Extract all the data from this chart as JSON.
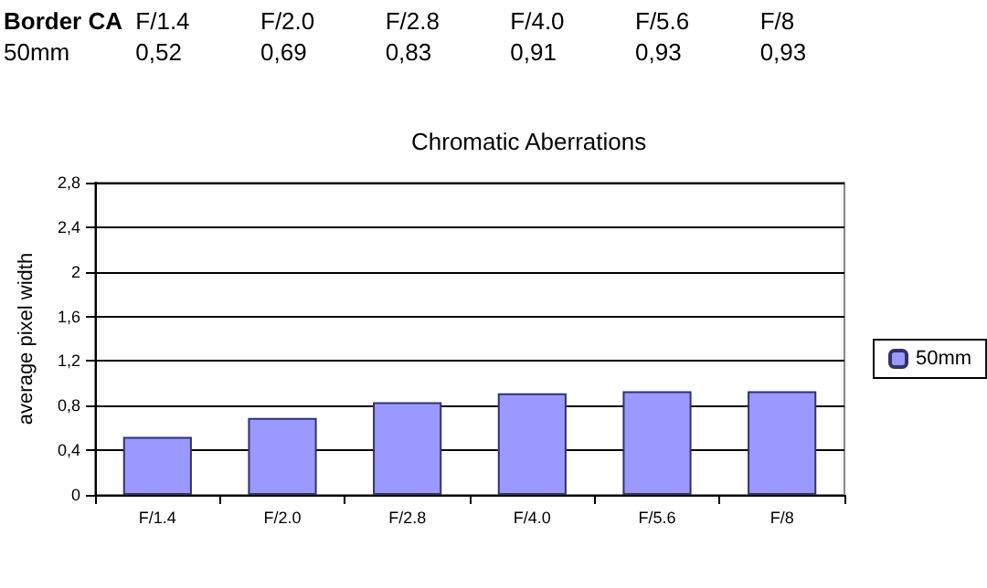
{
  "chart_data": {
    "type": "bar",
    "title": "Chromatic Aberrations",
    "ylabel": "average pixel width",
    "annotations": [
      "Border CA"
    ],
    "categories": [
      "F/1.4",
      "F/2.0",
      "F/2.8",
      "F/4.0",
      "F/5.6",
      "F/8"
    ],
    "series": [
      {
        "name": "50mm",
        "color": "#9999ff",
        "values": [
          0.52,
          0.69,
          0.83,
          0.91,
          0.93,
          0.93
        ],
        "value_labels": [
          "0,52",
          "0,69",
          "0,83",
          "0,91",
          "0,93",
          "0,93"
        ]
      }
    ],
    "ylim": [
      0,
      2.8
    ],
    "yticks": [
      {
        "value": 0,
        "label": "0"
      },
      {
        "value": 0.4,
        "label": "0,4"
      },
      {
        "value": 0.8,
        "label": "0,8"
      },
      {
        "value": 1.2,
        "label": "1,2"
      },
      {
        "value": 1.6,
        "label": "1,6"
      },
      {
        "value": 2,
        "label": "2"
      },
      {
        "value": 2.4,
        "label": "2,4"
      },
      {
        "value": 2.8,
        "label": "2,8"
      }
    ],
    "grid": "y",
    "legend": "right"
  }
}
